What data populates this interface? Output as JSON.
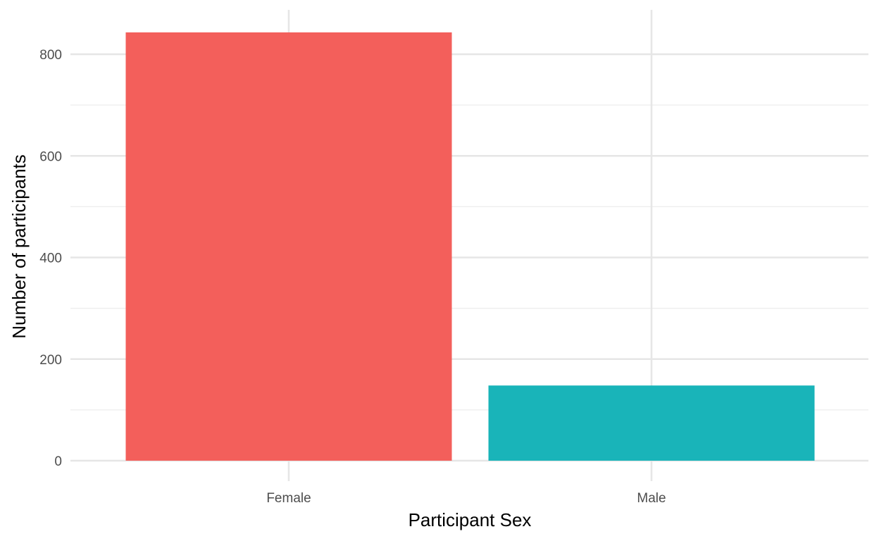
{
  "chart_data": {
    "type": "bar",
    "categories": [
      "Female",
      "Male"
    ],
    "values": [
      843,
      148
    ],
    "colors": [
      "#F35F5B",
      "#19B4B9"
    ],
    "title": "",
    "xlabel": "Participant Sex",
    "ylabel": "Number of participants",
    "ylim": [
      0,
      850
    ],
    "yticks": [
      0,
      200,
      400,
      600,
      800
    ],
    "y_minor_ticks": [
      100,
      300,
      500,
      700
    ],
    "grid": true,
    "legend": "none"
  }
}
